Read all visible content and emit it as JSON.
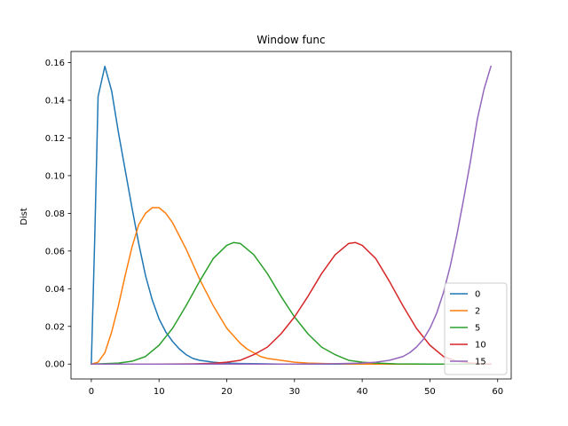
{
  "chart_data": {
    "type": "line",
    "title": "Window func",
    "xlabel": "",
    "ylabel": "Dist",
    "xlim": [
      -3,
      62
    ],
    "ylim": [
      -0.0079,
      0.1659
    ],
    "xticks": [
      0,
      10,
      20,
      30,
      40,
      50,
      60
    ],
    "yticks": [
      0.0,
      0.02,
      0.04,
      0.06,
      0.08,
      0.1,
      0.12,
      0.14,
      0.16
    ],
    "ytick_labels": [
      "0.00",
      "0.02",
      "0.04",
      "0.06",
      "0.08",
      "0.10",
      "0.12",
      "0.14",
      "0.16"
    ],
    "grid": false,
    "legend": {
      "position": "lower-right"
    },
    "series": [
      {
        "name": "0",
        "color": "#1f77b4",
        "x": [
          0,
          0.5,
          1,
          2,
          3,
          4,
          5,
          6,
          7,
          8,
          9,
          10,
          11,
          12,
          13,
          14,
          15,
          16,
          17,
          18,
          19,
          20,
          22,
          24,
          26,
          28,
          30,
          35,
          40,
          45,
          50,
          55,
          59
        ],
        "y": [
          0.0,
          0.066,
          0.142,
          0.158,
          0.145,
          0.123,
          0.103,
          0.083,
          0.064,
          0.047,
          0.034,
          0.024,
          0.017,
          0.012,
          0.008,
          0.005,
          0.003,
          0.002,
          0.0015,
          0.001,
          0.0007,
          0.0005,
          0.0003,
          0.0002,
          0.0001,
          0.0,
          0.0,
          0.0,
          0.0,
          0.0,
          0.0,
          0.0,
          0.0
        ]
      },
      {
        "name": "2",
        "color": "#ff7f0e",
        "x": [
          0,
          1,
          2,
          3,
          4,
          5,
          6,
          7,
          8,
          9,
          10,
          11,
          12,
          13,
          14,
          15,
          16,
          17,
          18,
          19,
          20,
          21,
          22,
          23,
          24,
          25,
          26,
          28,
          30,
          32,
          35,
          40,
          45,
          50,
          55,
          59
        ],
        "y": [
          0.0,
          0.001,
          0.006,
          0.017,
          0.031,
          0.047,
          0.062,
          0.074,
          0.08,
          0.083,
          0.083,
          0.08,
          0.075,
          0.068,
          0.061,
          0.053,
          0.045,
          0.038,
          0.031,
          0.025,
          0.019,
          0.015,
          0.011,
          0.008,
          0.006,
          0.004,
          0.003,
          0.002,
          0.001,
          0.0005,
          0.0002,
          0.0,
          0.0,
          0.0,
          0.0,
          0.0
        ]
      },
      {
        "name": "5",
        "color": "#2ca02c",
        "x": [
          0,
          4,
          6,
          8,
          10,
          12,
          14,
          16,
          18,
          20,
          21,
          22,
          24,
          26,
          28,
          30,
          32,
          34,
          36,
          38,
          40,
          42,
          45,
          50,
          55,
          59
        ],
        "y": [
          0.0,
          0.0005,
          0.0015,
          0.004,
          0.01,
          0.019,
          0.031,
          0.044,
          0.056,
          0.063,
          0.0645,
          0.064,
          0.058,
          0.048,
          0.036,
          0.025,
          0.016,
          0.009,
          0.005,
          0.002,
          0.001,
          0.0005,
          0.0001,
          0.0,
          0.0,
          0.0
        ]
      },
      {
        "name": "10",
        "color": "#d62728",
        "x": [
          0,
          10,
          15,
          18,
          20,
          22,
          24,
          26,
          28,
          30,
          32,
          34,
          36,
          38,
          39,
          40,
          42,
          44,
          46,
          48,
          50,
          52,
          54,
          56,
          58,
          59
        ],
        "y": [
          0.0,
          0.0,
          0.0001,
          0.0004,
          0.001,
          0.002,
          0.005,
          0.009,
          0.016,
          0.025,
          0.036,
          0.048,
          0.058,
          0.064,
          0.0645,
          0.063,
          0.056,
          0.044,
          0.031,
          0.019,
          0.01,
          0.004,
          0.0015,
          0.0005,
          0.0001,
          0.0
        ]
      },
      {
        "name": "15",
        "color": "#9467bd",
        "x": [
          0,
          20,
          30,
          35,
          40,
          42,
          44,
          46,
          47,
          48,
          49,
          50,
          51,
          52,
          53,
          54,
          55,
          56,
          57,
          58,
          59
        ],
        "y": [
          0.0,
          0.0,
          0.0,
          0.0001,
          0.0005,
          0.001,
          0.002,
          0.004,
          0.006,
          0.009,
          0.013,
          0.019,
          0.027,
          0.038,
          0.052,
          0.069,
          0.088,
          0.108,
          0.13,
          0.146,
          0.158
        ]
      }
    ]
  }
}
